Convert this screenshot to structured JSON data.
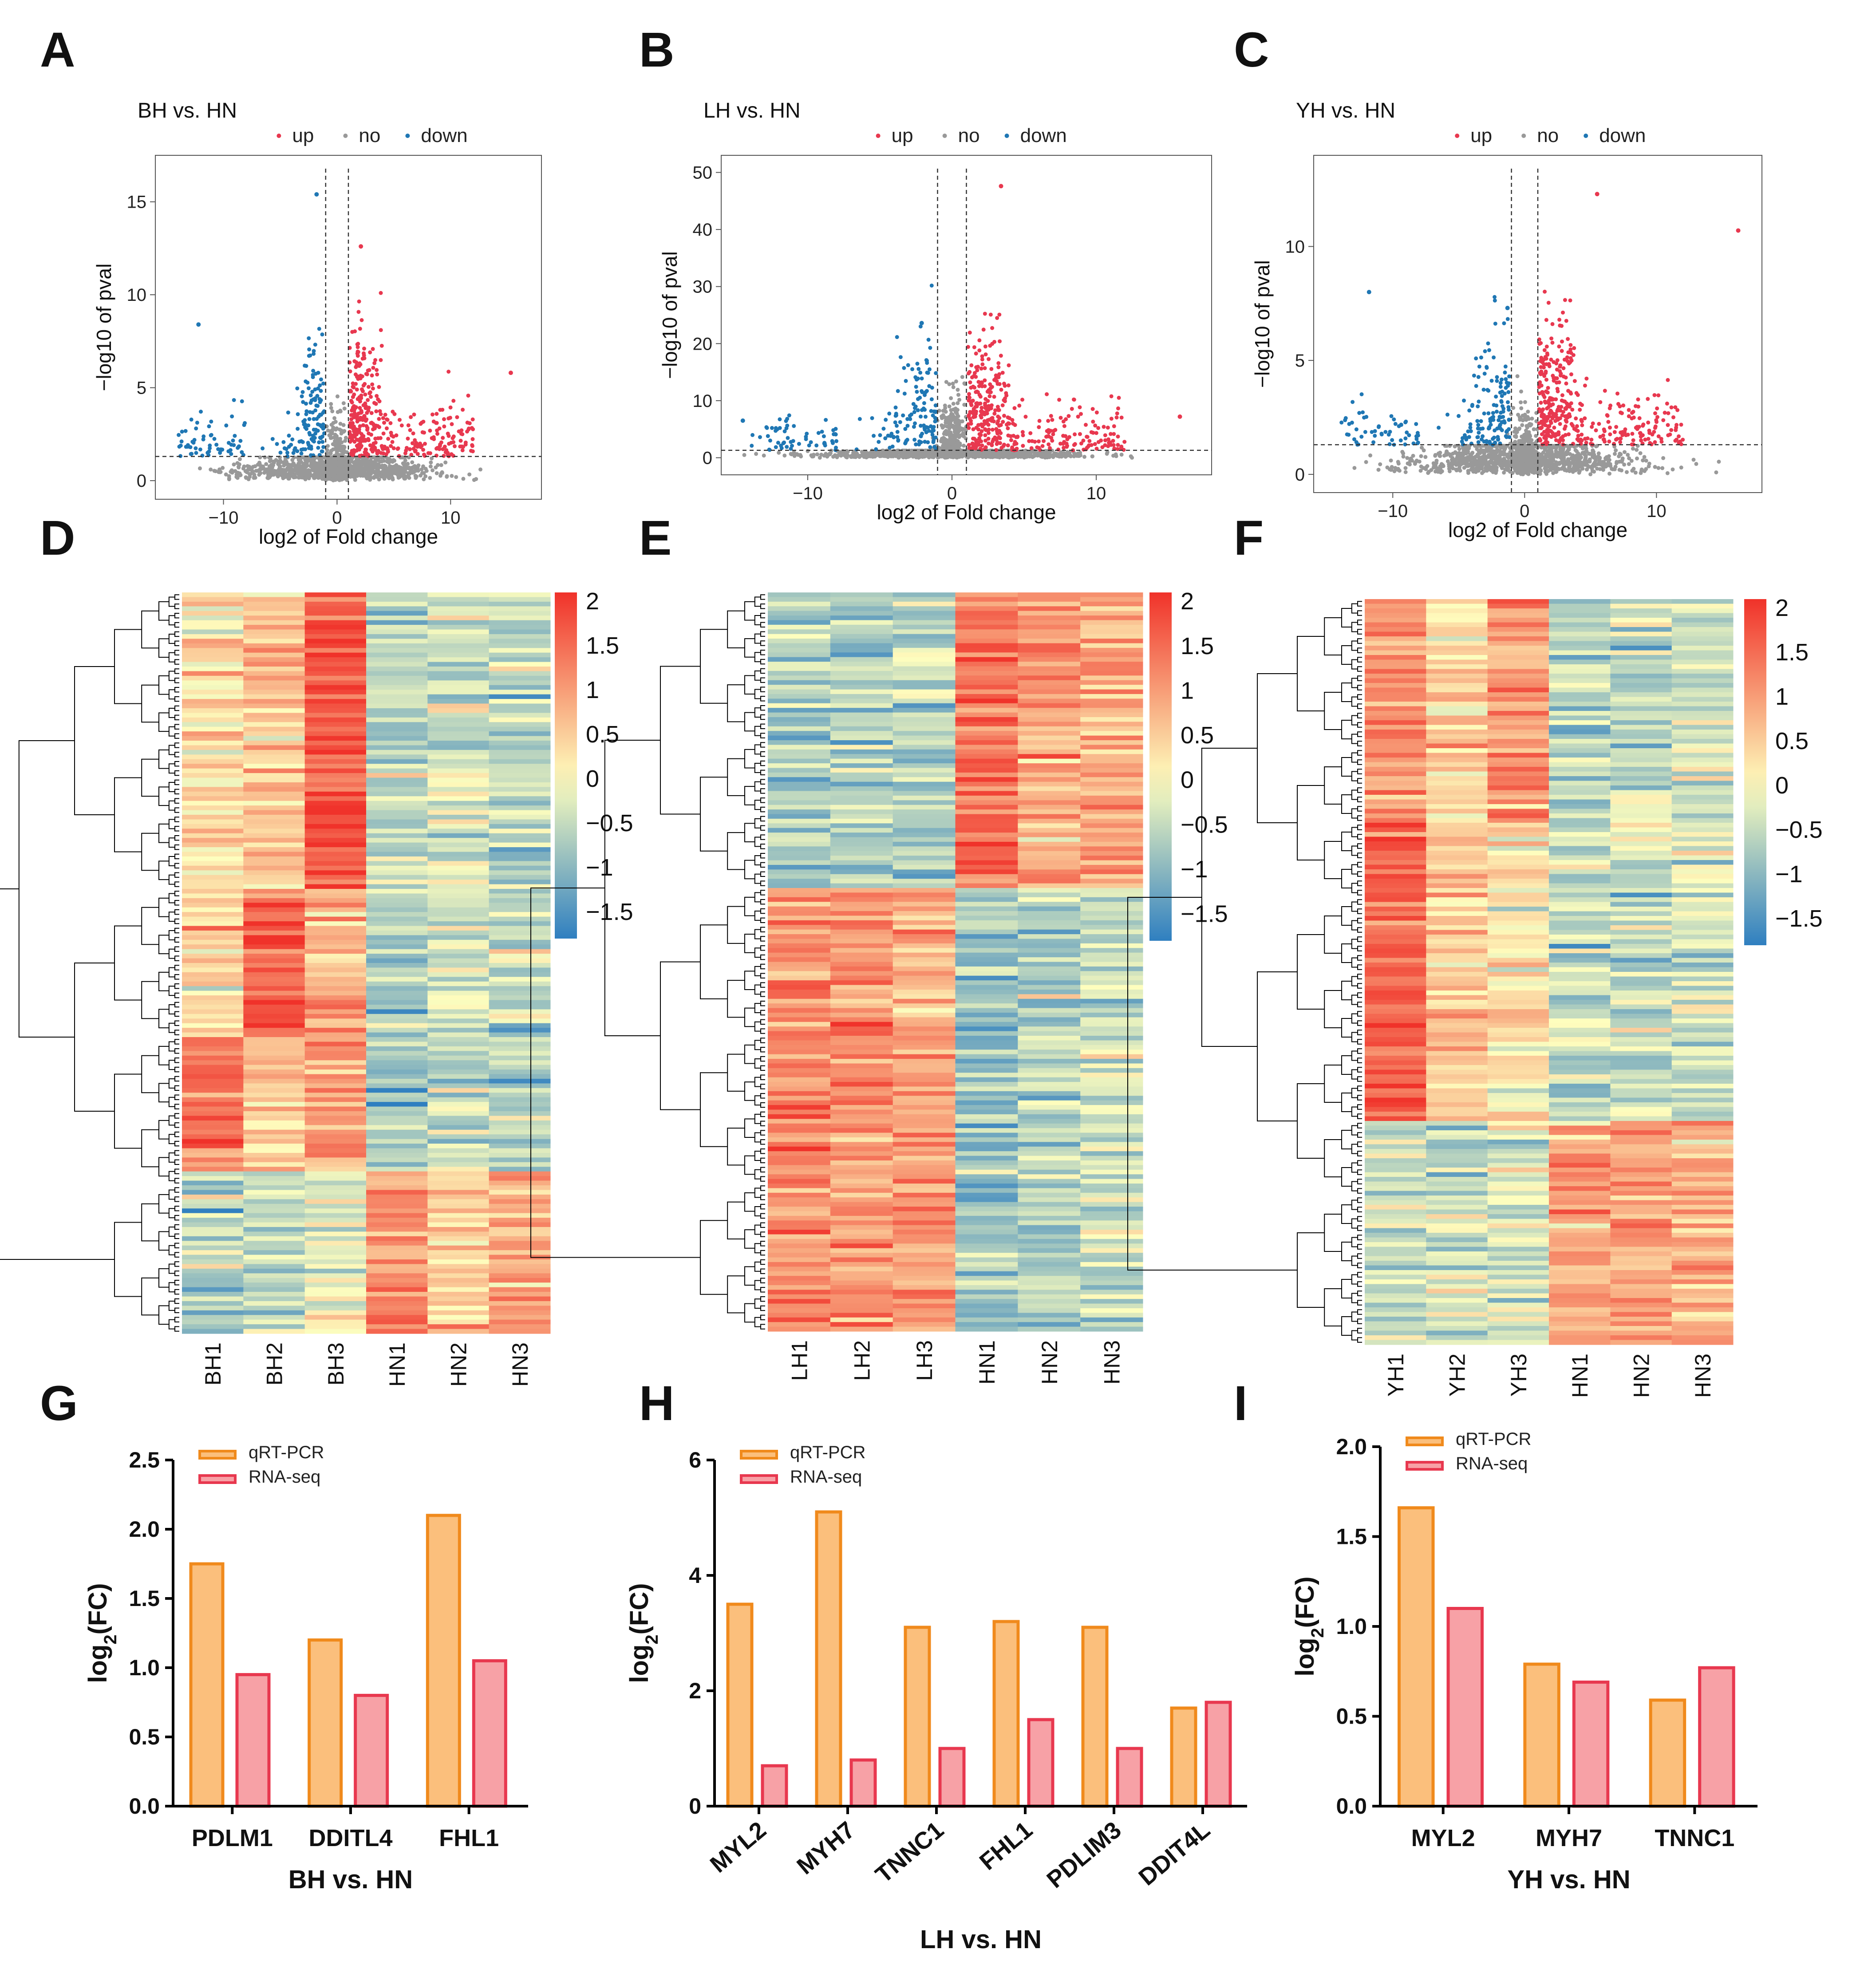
{
  "chart_data": [
    {
      "panel": "A",
      "type": "scatter",
      "kind": "volcano",
      "title": "BH vs. HN",
      "legend": [
        "up",
        "no",
        "down"
      ],
      "xlabel": "log2 of Fold change",
      "ylabel": "−log10 of pval",
      "xlim": [
        -16,
        18
      ],
      "ylim": [
        -1,
        17.5
      ],
      "xticks": [
        -10,
        0,
        10
      ],
      "yticks": [
        0,
        5,
        10,
        15
      ],
      "thresholds": {
        "x": [
          -1,
          1
        ],
        "y": 1.3
      },
      "highlights": {
        "up_max": [
          2.1,
          12.6
        ],
        "down_max": [
          -1.8,
          15.4
        ],
        "far_up": [
          15.3,
          5.8
        ],
        "far_down": [
          -12.2,
          8.4
        ]
      }
    },
    {
      "panel": "B",
      "type": "scatter",
      "kind": "volcano",
      "title": "LH vs. HN",
      "legend": [
        "up",
        "no",
        "down"
      ],
      "xlabel": "log2 of Fold change",
      "ylabel": "−log10 of pval",
      "xlim": [
        -16,
        18
      ],
      "ylim": [
        -3,
        53
      ],
      "xticks": [
        -10,
        0,
        10
      ],
      "yticks": [
        0,
        10,
        20,
        30,
        40,
        50
      ],
      "thresholds": {
        "x": [
          -1,
          1
        ],
        "y": 1.3
      },
      "highlights": {
        "up_max": [
          3.4,
          47.6
        ],
        "down_max": [
          -2.1,
          23.6
        ],
        "far_up": [
          15.8,
          7.2
        ],
        "far_down": [
          -14.5,
          6.5
        ]
      }
    },
    {
      "panel": "C",
      "type": "scatter",
      "kind": "volcano",
      "title": "YH vs. HN",
      "legend": [
        "up",
        "no",
        "down"
      ],
      "xlabel": "log2 of Fold change",
      "ylabel": "−log10 of pval",
      "xlim": [
        -16,
        18
      ],
      "ylim": [
        -0.8,
        14
      ],
      "xticks": [
        -10,
        0,
        10
      ],
      "yticks": [
        0,
        5,
        10
      ],
      "thresholds": {
        "x": [
          -1,
          1
        ],
        "y": 1.3
      },
      "highlights": {
        "up_max": [
          5.5,
          12.3
        ],
        "down_max": [
          -1.3,
          7.3
        ],
        "far_up": [
          16.2,
          10.7
        ],
        "far_down": [
          -11.8,
          8.0
        ]
      }
    },
    {
      "panel": "D",
      "type": "heatmap",
      "columns": [
        "BH1",
        "BH2",
        "BH3",
        "HN1",
        "HN2",
        "HN3"
      ],
      "colorbar": {
        "min": -1.8,
        "max": 2.1,
        "ticks": [
          2,
          1.5,
          1,
          0.5,
          0,
          -0.5,
          -1,
          -1.5
        ]
      },
      "blocks": [
        {
          "rows": 0.4,
          "means": [
            0.3,
            0.6,
            1.7,
            -0.6,
            -0.4,
            -0.6
          ]
        },
        {
          "rows": 0.2,
          "means": [
            0.2,
            1.6,
            0.8,
            -0.7,
            -0.4,
            -0.5
          ]
        },
        {
          "rows": 0.18,
          "means": [
            1.4,
            0.6,
            0.9,
            -0.8,
            -0.5,
            -0.6
          ]
        },
        {
          "rows": 0.22,
          "means": [
            -0.7,
            -0.4,
            -0.3,
            1.2,
            0.5,
            1.0
          ]
        }
      ]
    },
    {
      "panel": "E",
      "type": "heatmap",
      "columns": [
        "LH1",
        "LH2",
        "LH3",
        "HN1",
        "HN2",
        "HN3"
      ],
      "colorbar": {
        "min": -1.8,
        "max": 2.1,
        "ticks": [
          2,
          1.5,
          1,
          0.5,
          0,
          -0.5,
          -1,
          -1.5
        ]
      },
      "blocks": [
        {
          "rows": 0.4,
          "means": [
            -0.7,
            -0.6,
            -0.6,
            1.4,
            0.9,
            0.9
          ]
        },
        {
          "rows": 0.6,
          "means": [
            1.1,
            1.1,
            1.0,
            -0.8,
            -0.6,
            -0.5
          ]
        }
      ]
    },
    {
      "panel": "F",
      "type": "heatmap",
      "columns": [
        "YH1",
        "YH2",
        "YH3",
        "HN1",
        "HN2",
        "HN3"
      ],
      "colorbar": {
        "min": -1.8,
        "max": 2.1,
        "ticks": [
          2,
          1.5,
          1,
          0.5,
          0,
          -0.5,
          -1,
          -1.5
        ]
      },
      "blocks": [
        {
          "rows": 0.3,
          "means": [
            1.1,
            0.4,
            1.0,
            -0.6,
            -0.5,
            -0.4
          ]
        },
        {
          "rows": 0.4,
          "means": [
            1.6,
            0.6,
            0.3,
            -0.6,
            -0.5,
            -0.3
          ]
        },
        {
          "rows": 0.3,
          "means": [
            -0.4,
            -0.4,
            -0.3,
            0.9,
            0.9,
            0.9
          ]
        }
      ]
    },
    {
      "panel": "G",
      "type": "bar",
      "categories": [
        "PDLM1",
        "DDITL4",
        "FHL1"
      ],
      "series": [
        {
          "name": "qRT-PCR",
          "values": [
            1.75,
            1.2,
            2.1
          ]
        },
        {
          "name": "RNA-seq",
          "values": [
            0.95,
            0.8,
            1.05
          ]
        }
      ],
      "xlabel": "BH vs. HN",
      "ylabel": "log2(FC)",
      "ylim": [
        0,
        2.5
      ],
      "yticks": [
        0.0,
        0.5,
        1.0,
        1.5,
        2.0,
        2.5
      ],
      "tick_decimals": 1,
      "rotate": false
    },
    {
      "panel": "H",
      "type": "bar",
      "categories": [
        "MYL2",
        "MYH7",
        "TNNC1",
        "FHL1",
        "PDLIM3",
        "DDIT4L"
      ],
      "series": [
        {
          "name": "qRT-PCR",
          "values": [
            3.5,
            5.1,
            3.1,
            3.2,
            3.1,
            1.7
          ]
        },
        {
          "name": "RNA-seq",
          "values": [
            0.7,
            0.8,
            1.0,
            1.5,
            1.0,
            1.8
          ]
        }
      ],
      "xlabel": "LH vs. HN",
      "ylabel": "log2(FC)",
      "ylim": [
        0,
        6
      ],
      "yticks": [
        0,
        2,
        4,
        6
      ],
      "tick_decimals": 0,
      "rotate": true
    },
    {
      "panel": "I",
      "type": "bar",
      "categories": [
        "MYL2",
        "MYH7",
        "TNNC1"
      ],
      "series": [
        {
          "name": "qRT-PCR",
          "values": [
            1.66,
            0.79,
            0.59
          ]
        },
        {
          "name": "RNA-seq",
          "values": [
            1.1,
            0.69,
            0.77
          ]
        }
      ],
      "xlabel": "YH vs. HN",
      "ylabel": "log2(FC)",
      "ylim": [
        0,
        2.0
      ],
      "yticks": [
        0.0,
        0.5,
        1.0,
        1.5,
        2.0
      ],
      "tick_decimals": 1,
      "rotate": false
    }
  ],
  "colors": {
    "up": "#e8384f",
    "no": "#999999",
    "down": "#1f77b4",
    "qrt_fill": "#fbbf7c",
    "qrt_stroke": "#f08a1c",
    "rna_fill": "#f7a1a6",
    "rna_stroke": "#e8384f",
    "heat_low": "#2f7fc0",
    "heat_mid": "#fefebe",
    "heat_high": "#f0322a"
  }
}
